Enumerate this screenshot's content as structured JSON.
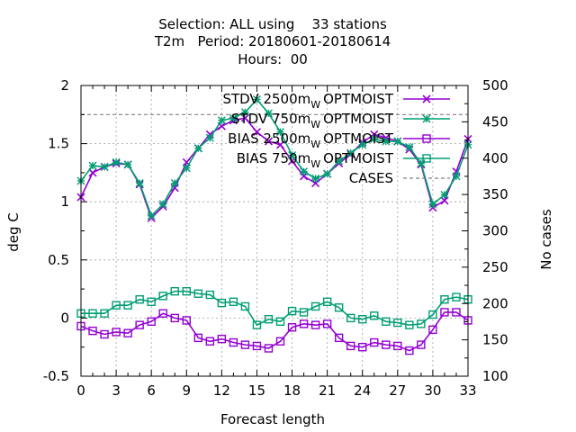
{
  "chart_data": {
    "type": "line",
    "title_lines": [
      "Selection: ALL using    33 stations",
      "T2m   Period: 20180601-20180614",
      "Hours:  00"
    ],
    "xlabel": "Forecast length",
    "ylabel": "deg C",
    "y2label": "No cases",
    "xlim": [
      0,
      33
    ],
    "ylim": [
      -0.5,
      2
    ],
    "y2lim": [
      100,
      500
    ],
    "x_ticks": [
      0,
      3,
      6,
      9,
      12,
      15,
      18,
      21,
      24,
      27,
      30,
      33
    ],
    "y_ticks": [
      "-0.5",
      "0",
      "0.5",
      "1",
      "1.5",
      "2"
    ],
    "y2_ticks": [
      "100",
      "150",
      "200",
      "250",
      "300",
      "350",
      "400",
      "450",
      "500"
    ],
    "grid": true,
    "legend_position": "top-right",
    "x": [
      0,
      1,
      2,
      3,
      4,
      5,
      6,
      7,
      8,
      9,
      10,
      11,
      12,
      13,
      14,
      15,
      16,
      17,
      18,
      19,
      20,
      21,
      22,
      23,
      24,
      25,
      26,
      27,
      28,
      29,
      30,
      31,
      32,
      33
    ],
    "series": [
      {
        "name": "STDV 2500m",
        "sub": "W",
        "name_suffix": "OPTMOIST",
        "color": "#9400d3",
        "marker": "x",
        "axis": "y",
        "values": [
          1.04,
          1.25,
          1.3,
          1.33,
          1.32,
          1.15,
          0.86,
          0.96,
          1.12,
          1.34,
          1.46,
          1.58,
          1.65,
          1.7,
          1.72,
          1.6,
          1.52,
          1.49,
          1.35,
          1.22,
          1.16,
          1.24,
          1.33,
          1.41,
          1.51,
          1.58,
          1.55,
          1.52,
          1.45,
          1.32,
          0.95,
          1.01,
          1.26,
          1.54
        ]
      },
      {
        "name": "STDV 750m",
        "sub": "W",
        "name_suffix": "OPTMOIST",
        "color": "#009e73",
        "marker": "star",
        "axis": "y",
        "values": [
          1.18,
          1.31,
          1.3,
          1.34,
          1.32,
          1.16,
          0.88,
          0.98,
          1.16,
          1.29,
          1.46,
          1.55,
          1.7,
          1.72,
          1.77,
          1.88,
          1.76,
          1.6,
          1.4,
          1.26,
          1.2,
          1.24,
          1.35,
          1.42,
          1.49,
          1.54,
          1.52,
          1.52,
          1.47,
          1.33,
          0.98,
          1.06,
          1.22,
          1.49
        ]
      },
      {
        "name": "BIAS 2500m",
        "sub": "W",
        "name_suffix": "OPTMOIST",
        "color": "#9400d3",
        "marker": "square",
        "axis": "y",
        "values": [
          -0.07,
          -0.11,
          -0.14,
          -0.12,
          -0.13,
          -0.06,
          -0.03,
          0.04,
          0.0,
          -0.02,
          -0.17,
          -0.2,
          -0.18,
          -0.21,
          -0.23,
          -0.24,
          -0.26,
          -0.2,
          -0.08,
          -0.05,
          -0.06,
          -0.05,
          -0.17,
          -0.24,
          -0.25,
          -0.21,
          -0.23,
          -0.24,
          -0.28,
          -0.23,
          -0.1,
          0.05,
          0.05,
          -0.02
        ]
      },
      {
        "name": "BIAS 750m",
        "sub": "W",
        "name_suffix": "OPTMOIST",
        "color": "#009e73",
        "marker": "square",
        "axis": "y",
        "values": [
          0.04,
          0.04,
          0.04,
          0.11,
          0.11,
          0.16,
          0.14,
          0.19,
          0.23,
          0.23,
          0.21,
          0.2,
          0.13,
          0.14,
          0.1,
          -0.06,
          -0.01,
          -0.03,
          0.06,
          0.05,
          0.1,
          0.14,
          0.09,
          0.0,
          -0.01,
          0.02,
          -0.03,
          -0.04,
          -0.06,
          -0.05,
          0.03,
          0.16,
          0.18,
          0.16
        ]
      },
      {
        "name": "CASES",
        "color": "#808080",
        "marker": "none",
        "dashed": true,
        "axis": "y2",
        "values": [
          460,
          460,
          460,
          460,
          460,
          460,
          460,
          460,
          460,
          460,
          460,
          460,
          460,
          460,
          460,
          460,
          460,
          460,
          460,
          460,
          460,
          460,
          460,
          460,
          460,
          460,
          460,
          460,
          460,
          460,
          460,
          460,
          460,
          460
        ]
      }
    ]
  }
}
